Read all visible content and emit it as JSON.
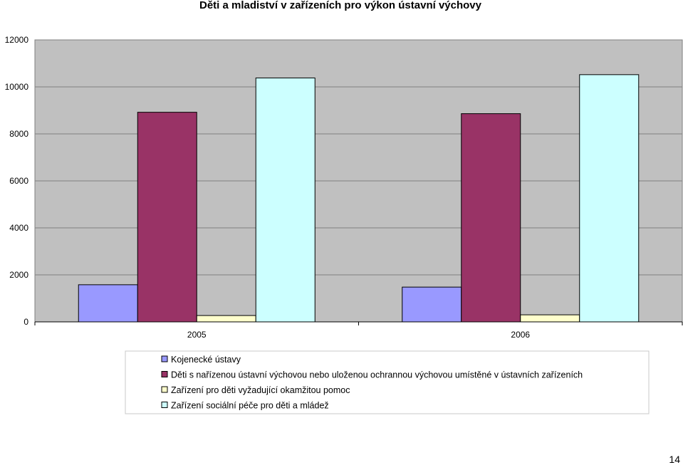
{
  "page_number": "14",
  "chart_data": {
    "type": "bar",
    "title": "Děti a mladiství v zařízeních pro výkon ústavní výchovy",
    "xlabel": "",
    "ylabel": "",
    "categories": [
      "2005",
      "2006"
    ],
    "ylim": [
      0,
      12000
    ],
    "yticks": [
      "0",
      "2000",
      "4000",
      "6000",
      "8000",
      "10000",
      "12000"
    ],
    "grid": true,
    "legend_position": "bottom",
    "series": [
      {
        "name": "Kojenecké ústavy",
        "values": [
          1580,
          1480
        ],
        "color": "#9999ff"
      },
      {
        "name": "Děti s nařízenou ústavní výchovou nebo uloženou ochrannou výchovou umístěné v ústavních zařízeních",
        "values": [
          8920,
          8860
        ],
        "color": "#993366"
      },
      {
        "name": "Zařízení pro děti vyžadující okamžitou pomoc",
        "values": [
          270,
          300
        ],
        "color": "#ffffcc"
      },
      {
        "name": "Zařízení sociální péče pro děti a mládež",
        "values": [
          10380,
          10520
        ],
        "color": "#ccffff"
      }
    ],
    "plot_background": "#c0c0c0"
  }
}
